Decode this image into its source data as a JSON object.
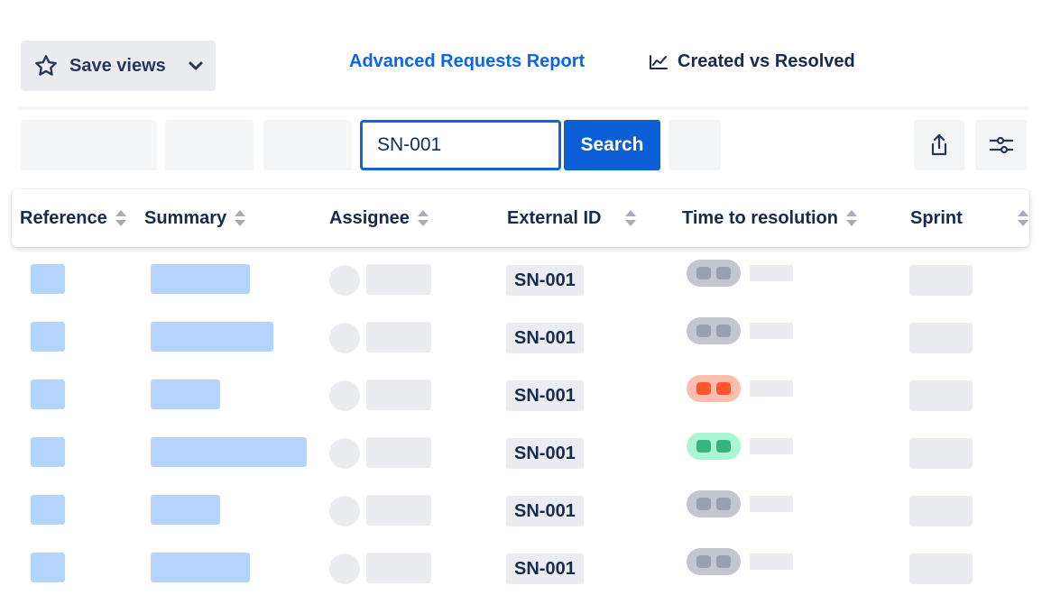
{
  "toolbar": {
    "save_views_label": "Save views",
    "advanced_report_label": "Advanced Requests Report",
    "created_vs_resolved_label": "Created vs Resolved"
  },
  "search": {
    "value": "SN-001",
    "button_label": "Search"
  },
  "columns": [
    {
      "label": "Reference"
    },
    {
      "label": "Summary"
    },
    {
      "label": "Assignee"
    },
    {
      "label": "External ID"
    },
    {
      "label": "Time to resolution"
    },
    {
      "label": "Sprint"
    }
  ],
  "rows": [
    {
      "external_id": "SN-001",
      "status": "neutral"
    },
    {
      "external_id": "SN-001",
      "status": "neutral"
    },
    {
      "external_id": "SN-001",
      "status": "breached"
    },
    {
      "external_id": "SN-001",
      "status": "met"
    },
    {
      "external_id": "SN-001",
      "status": "neutral"
    },
    {
      "external_id": "SN-001",
      "status": "neutral"
    }
  ],
  "colors": {
    "accent": "#0c66e4",
    "search_button": "#0c5fd6",
    "placeholder_blue": "#b3d4ff",
    "placeholder_gray": "#ebecf0",
    "status_neutral_bg": "#c1c7d0",
    "status_neutral_dot": "#97a0af",
    "status_breached_bg": "#ffbdad",
    "status_breached_dot": "#ff5630",
    "status_met_bg": "#abf5d1",
    "status_met_dot": "#36b37e"
  },
  "icons": {
    "save_views": "star-icon",
    "dropdown": "chevron-down-icon",
    "report": "line-chart-icon",
    "export": "share-icon",
    "settings": "sliders-icon",
    "sort": "sort-icon"
  }
}
